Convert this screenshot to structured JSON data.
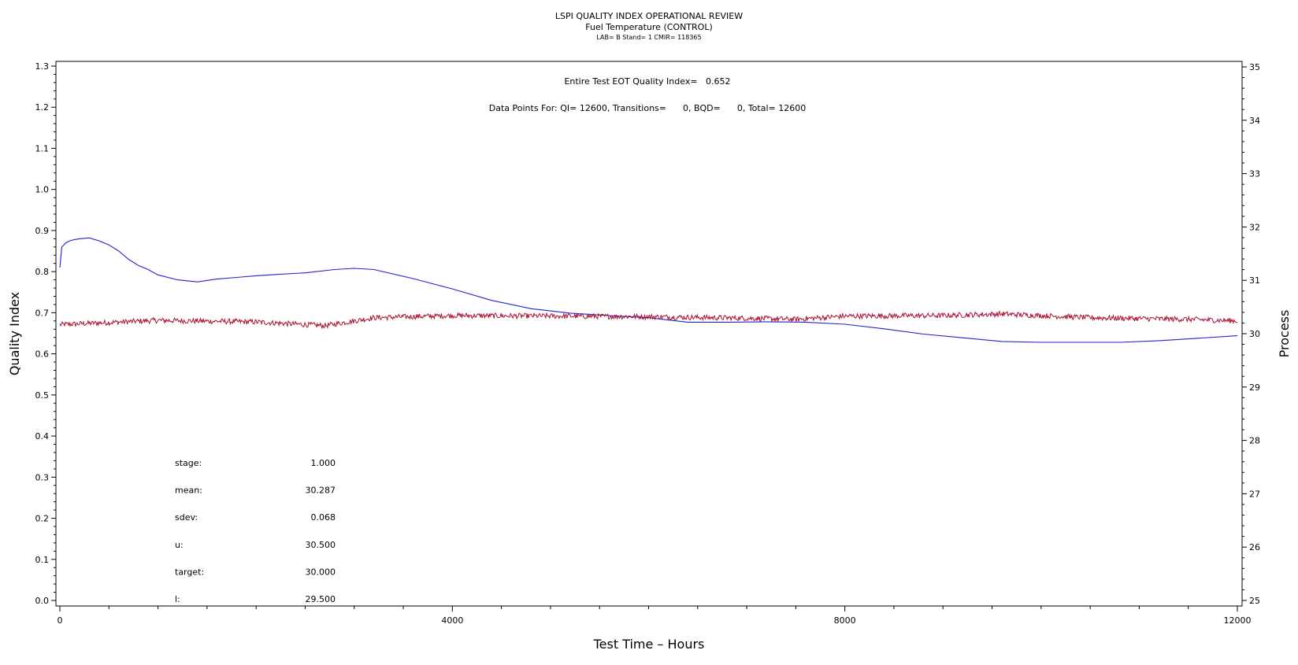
{
  "header": {
    "title": "LSPI QUALITY INDEX OPERATIONAL REVIEW",
    "subtitle": "Fuel Temperature (CONTROL)",
    "meta": "LAB= B Stand= 1 CMIR= 118365"
  },
  "chart_data": {
    "type": "line",
    "annotations": {
      "eot": "Entire Test EOT Quality Index=   0.652",
      "points": "Data Points For: QI= 12600, Transitions=      0, BQD=      0, Total= 12600"
    },
    "stats": [
      {
        "label": "stage:",
        "value": "1.000"
      },
      {
        "label": "mean:",
        "value": "30.287"
      },
      {
        "label": "sdev:",
        "value": "0.068"
      },
      {
        "label": "u:",
        "value": "30.500"
      },
      {
        "label": "target:",
        "value": "30.000"
      },
      {
        "label": "l:",
        "value": "29.500"
      }
    ],
    "xlabel": "Test Time – Hours",
    "ylabel_left": "Quality Index",
    "ylabel_right": "Process",
    "xlim": [
      0,
      12000
    ],
    "ylim_left": [
      0,
      1.3
    ],
    "ylim_right": [
      25,
      35
    ],
    "x_ticks": [
      "0",
      "4000",
      "8000",
      "12000"
    ],
    "y_left_ticks": [
      "0.0",
      "0.1",
      "0.2",
      "0.3",
      "0.4",
      "0.5",
      "0.6",
      "0.7",
      "0.8",
      "0.9",
      "1.0",
      "1.1",
      "1.2",
      "1.3"
    ],
    "y_right_ticks": [
      "25",
      "26",
      "27",
      "28",
      "29",
      "30",
      "31",
      "32",
      "33",
      "34",
      "35"
    ],
    "grid": false,
    "colors": {
      "quality_index": "#2222cc",
      "process": "#aa1133"
    },
    "series": [
      {
        "axis": "left",
        "color": "#2222cc",
        "x": [
          0,
          20,
          40,
          60,
          100,
          150,
          200,
          300,
          400,
          500,
          600,
          700,
          800,
          900,
          1000,
          1200,
          1400,
          1600,
          1800,
          2000,
          2200,
          2500,
          2800,
          3000,
          3200,
          3600,
          4000,
          4400,
          4800,
          5200,
          5600,
          6000,
          6400,
          6800,
          7200,
          7600,
          8000,
          8400,
          8800,
          9200,
          9600,
          10000,
          10400,
          10800,
          11200,
          11600,
          12000
        ],
        "y": [
          0.81,
          0.86,
          0.865,
          0.87,
          0.875,
          0.878,
          0.88,
          0.882,
          0.875,
          0.865,
          0.85,
          0.83,
          0.815,
          0.805,
          0.792,
          0.78,
          0.775,
          0.782,
          0.786,
          0.79,
          0.793,
          0.797,
          0.805,
          0.808,
          0.805,
          0.783,
          0.758,
          0.73,
          0.71,
          0.699,
          0.693,
          0.688,
          0.677,
          0.677,
          0.678,
          0.677,
          0.672,
          0.661,
          0.648,
          0.639,
          0.63,
          0.628,
          0.628,
          0.628,
          0.632,
          0.638,
          0.644
        ]
      },
      {
        "axis": "right",
        "color": "#aa1133",
        "x": [
          0,
          1000,
          2000,
          2700,
          3200,
          4000,
          5000,
          6000,
          7000,
          7500,
          8000,
          9000,
          9600,
          10500,
          11500,
          12000
        ],
        "y": [
          30.17,
          30.25,
          30.22,
          30.15,
          30.3,
          30.34,
          30.33,
          30.32,
          30.29,
          30.27,
          30.33,
          30.34,
          30.37,
          30.3,
          30.27,
          30.24
        ]
      }
    ]
  }
}
